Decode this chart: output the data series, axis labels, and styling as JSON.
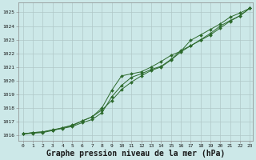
{
  "background_color": "#cce8e8",
  "grid_color": "#b0c8c8",
  "line_color": "#2d6a2d",
  "marker_color": "#2d6a2d",
  "xlabel": "Graphe pression niveau de la mer (hPa)",
  "xlabel_fontsize": 7,
  "xlim_min": -0.5,
  "xlim_max": 23.3,
  "ylim_min": 1015.6,
  "ylim_max": 1025.7,
  "yticks": [
    1016,
    1017,
    1018,
    1019,
    1020,
    1021,
    1022,
    1023,
    1024,
    1025
  ],
  "xticks": [
    0,
    1,
    2,
    3,
    4,
    5,
    6,
    7,
    8,
    9,
    10,
    11,
    12,
    13,
    14,
    15,
    16,
    17,
    18,
    19,
    20,
    21,
    22,
    23
  ],
  "smooth_x": [
    0,
    1,
    2,
    3,
    4,
    5,
    6,
    7,
    8,
    9,
    10,
    11,
    12,
    13,
    14,
    15,
    16,
    17,
    18,
    19,
    20,
    21,
    22,
    23
  ],
  "smooth_y": [
    1016.1,
    1016.15,
    1016.2,
    1016.35,
    1016.55,
    1016.75,
    1017.05,
    1017.35,
    1017.85,
    1018.55,
    1019.35,
    1019.9,
    1020.35,
    1020.75,
    1021.0,
    1021.5,
    1022.1,
    1022.55,
    1022.95,
    1023.35,
    1023.85,
    1024.35,
    1024.75,
    1025.3
  ],
  "line2_x": [
    0,
    1,
    2,
    3,
    4,
    5,
    6,
    7,
    8,
    9,
    10,
    11,
    12,
    13,
    14,
    15,
    16,
    17,
    18,
    19,
    20,
    21,
    22,
    23
  ],
  "line2_y": [
    1016.1,
    1016.2,
    1016.25,
    1016.4,
    1016.55,
    1016.7,
    1017.05,
    1017.35,
    1018.0,
    1019.3,
    1020.35,
    1020.5,
    1020.65,
    1021.0,
    1021.4,
    1021.85,
    1022.15,
    1022.95,
    1023.35,
    1023.75,
    1024.15,
    1024.65,
    1024.95,
    1025.3
  ],
  "line3_x": [
    0,
    1,
    2,
    3,
    4,
    5,
    6,
    7,
    8,
    9,
    10,
    11,
    12,
    13,
    14,
    15,
    16,
    17,
    18,
    19,
    20,
    21,
    22,
    23
  ],
  "line3_y": [
    1016.1,
    1016.2,
    1016.25,
    1016.38,
    1016.5,
    1016.65,
    1016.92,
    1017.15,
    1017.65,
    1018.82,
    1019.65,
    1020.25,
    1020.5,
    1020.82,
    1021.05,
    1021.55,
    1022.2,
    1022.55,
    1023.0,
    1023.45,
    1024.0,
    1024.4,
    1024.75,
    1025.3
  ]
}
